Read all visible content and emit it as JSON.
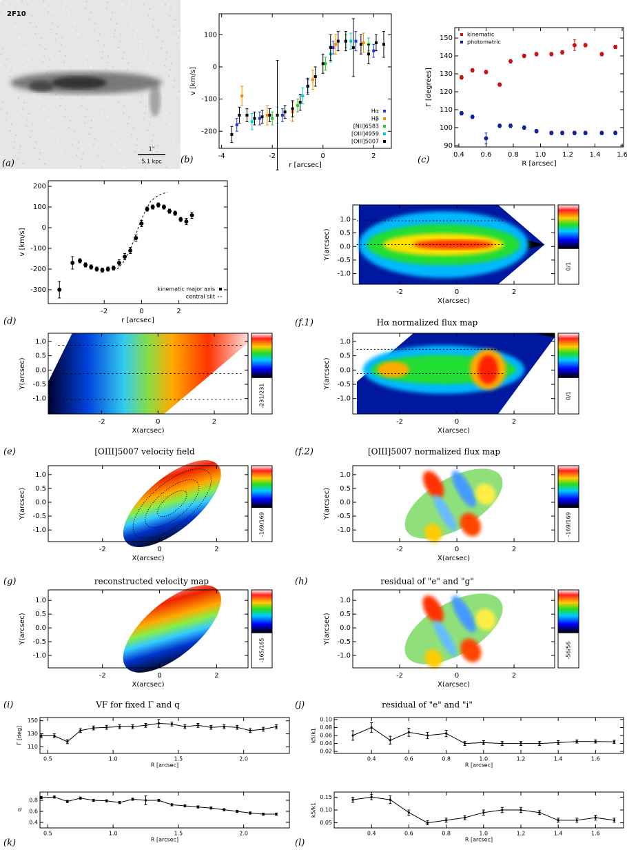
{
  "chart_data": [
    {
      "type": "image",
      "label": "2F10",
      "scale_top": "1\"",
      "scale_bottom": "5.1 kpc",
      "caption": "(a)"
    },
    {
      "type": "scatter",
      "caption": "(b)",
      "xlabel": "r [arcsec]",
      "ylabel": "v [km/s]",
      "xlim": [
        -4.1,
        2.7
      ],
      "ylim": [
        -253,
        165
      ],
      "xticks": [
        -4,
        -2,
        0,
        2
      ],
      "yticks": [
        -200,
        -100,
        0,
        100
      ],
      "legend": "lower right",
      "series": [
        {
          "name": "Hα",
          "color": "#2233dd",
          "x": [
            -3.4,
            -2.5,
            -1.6,
            -0.6,
            0.4,
            1.3,
            2.0
          ],
          "values": [
            -180,
            -160,
            -150,
            -60,
            60,
            80,
            50
          ],
          "errors": [
            20,
            20,
            20,
            20,
            20,
            30,
            20
          ]
        },
        {
          "name": "Hβ",
          "color": "#ff8800",
          "x": [
            -3.2,
            -2.2,
            -1.2,
            -0.4,
            0.5,
            1.6
          ],
          "values": [
            -90,
            -150,
            -140,
            -40,
            70,
            75
          ],
          "errors": [
            30,
            30,
            30,
            30,
            30,
            30
          ]
        },
        {
          "name": "[NII]6583",
          "color": "#22cc22",
          "x": [
            -3.0,
            -2.0,
            -1.0,
            0.1,
            0.9,
            1.8
          ],
          "values": [
            -150,
            -160,
            -120,
            10,
            80,
            70
          ],
          "errors": [
            20,
            20,
            20,
            20,
            20,
            20
          ]
        },
        {
          "name": "[OIII]4959",
          "color": "#00cccc",
          "x": [
            -2.8,
            -1.8,
            -0.8,
            0.3,
            1.1
          ],
          "values": [
            -170,
            -150,
            -90,
            40,
            80
          ],
          "errors": [
            25,
            25,
            25,
            25,
            25
          ]
        },
        {
          "name": "[OIII]5007",
          "color": "#000000",
          "x": [
            -3.6,
            -3.3,
            -3.0,
            -2.7,
            -2.4,
            -2.1,
            -1.8,
            -1.5,
            -1.2,
            -0.9,
            -0.6,
            -0.3,
            0,
            0.3,
            0.6,
            0.9,
            1.2,
            1.5,
            1.8,
            2.1,
            2.4
          ],
          "values": [
            -210,
            -150,
            -150,
            -160,
            -155,
            -150,
            -150,
            -140,
            -130,
            -110,
            -60,
            -30,
            10,
            60,
            80,
            80,
            60,
            70,
            40,
            75,
            70
          ],
          "errors": [
            25,
            25,
            20,
            20,
            20,
            20,
            170,
            20,
            25,
            25,
            25,
            30,
            30,
            40,
            30,
            30,
            90,
            30,
            30,
            25,
            40
          ]
        }
      ]
    },
    {
      "type": "scatter",
      "caption": "(c)",
      "xlabel": "R [arcsec]",
      "ylabel": "Γ [degrees]",
      "xlim": [
        0.37,
        1.61
      ],
      "ylim": [
        89.2,
        155.8
      ],
      "xticks": [
        0.4,
        0.6,
        0.8,
        {
          "value": 1,
          "label": "1.0"
        },
        1.2,
        1.4,
        1.6
      ],
      "yticks": [
        90,
        100,
        110,
        120,
        130,
        140,
        150
      ],
      "legend": "upper left",
      "series": [
        {
          "name": "kinematic",
          "color": "#cc1111",
          "x": [
            0.42,
            0.5,
            0.6,
            0.7,
            0.78,
            0.88,
            0.97,
            1.08,
            1.16,
            1.25,
            1.33,
            1.45,
            1.55
          ],
          "values": [
            128,
            132,
            131,
            124,
            137,
            140,
            141,
            141,
            142,
            146,
            146,
            141,
            145
          ],
          "errors": [
            1,
            1,
            1,
            1,
            1,
            1,
            1,
            1,
            1,
            3,
            1,
            1,
            1
          ]
        },
        {
          "name": "photometric",
          "color": "#112299",
          "x": [
            0.42,
            0.5,
            0.6,
            0.7,
            0.78,
            0.88,
            0.97,
            1.08,
            1.16,
            1.25,
            1.33,
            1.45,
            1.55
          ],
          "values": [
            108,
            106,
            94,
            101,
            101,
            100,
            98,
            97,
            97,
            97,
            97,
            97,
            97
          ],
          "errors": [
            1,
            1,
            3,
            1,
            1,
            1,
            1,
            1,
            1,
            1,
            1,
            1,
            1
          ]
        }
      ]
    },
    {
      "type": "scatter",
      "caption": "(d)",
      "xlabel": "r [arcsec]",
      "ylabel": "v [km/s]",
      "xlim": [
        -5,
        4.6
      ],
      "ylim": [
        -367,
        227
      ],
      "xticks": [
        -2,
        0,
        2
      ],
      "yticks": [
        -300,
        -200,
        -100,
        0,
        100,
        200
      ],
      "legend": "lower right",
      "series": [
        {
          "name": "kinematic major axis",
          "color": "#000000",
          "x": [
            -4.4,
            -3.7,
            -3.3,
            -3,
            -2.7,
            -2.4,
            -2.1,
            -1.8,
            -1.5,
            -1.2,
            -0.9,
            -0.6,
            -0.3,
            0,
            0.3,
            0.6,
            0.9,
            1.2,
            1.5,
            1.8,
            2.1,
            2.4,
            2.7
          ],
          "values": [
            -300,
            -170,
            -160,
            -180,
            -190,
            -200,
            -205,
            -200,
            -195,
            -170,
            -140,
            -110,
            -50,
            20,
            90,
            100,
            110,
            100,
            80,
            70,
            40,
            30,
            60
          ],
          "errors": [
            40,
            30,
            10,
            10,
            10,
            10,
            10,
            10,
            10,
            15,
            15,
            15,
            15,
            15,
            10,
            10,
            10,
            10,
            10,
            10,
            10,
            15,
            15
          ]
        },
        {
          "name": "central slit",
          "color": "#000000",
          "style": "dashed",
          "x": [
            -1.3,
            -1.0,
            -0.7,
            -0.4,
            -0.1,
            0.2,
            0.5,
            0.8,
            1.1,
            1.4
          ],
          "values": [
            -200,
            -170,
            -120,
            -60,
            20,
            80,
            130,
            150,
            165,
            170
          ]
        }
      ]
    },
    {
      "type": "map",
      "caption": "(f.1)",
      "title": "Hα normalized flux map",
      "xlabel": "X(arcsec)",
      "ylabel": "Y(arcsec)",
      "colorbar": "0/1",
      "xlim": [
        -3.64,
        3.42
      ],
      "ylim": [
        -1.39,
        1.53
      ],
      "xticks": [
        -2,
        0,
        2
      ],
      "yticks": [
        {
          "value": 1,
          "label": "1.0"
        },
        0.5,
        {
          "value": 0,
          "label": "0.0"
        },
        -0.5,
        {
          "value": -1,
          "label": "-1.0"
        }
      ]
    },
    {
      "type": "map",
      "caption": "(e)",
      "title": "[OIII]5007 velocity field",
      "xlabel": "X(arcsec)",
      "ylabel": "Y(arcsec)",
      "colorbar": "-231/231",
      "xlim": [
        -3.9,
        3.2
      ],
      "ylim": [
        -1.54,
        1.29
      ],
      "xticks": [
        -2,
        0,
        2
      ],
      "yticks": [
        {
          "value": 1,
          "label": "1.0"
        },
        0.5,
        {
          "value": 0,
          "label": "0.0"
        },
        -0.5,
        {
          "value": -1,
          "label": "-1.0"
        }
      ]
    },
    {
      "type": "map",
      "caption": "(f.2)",
      "title": "[OIII]5007  normalized flux map",
      "xlabel": "X(arcsec)",
      "ylabel": "Y(arcsec)",
      "colorbar": "0/1",
      "xlim": [
        -3.64,
        3.42
      ],
      "ylim": [
        -1.54,
        1.29
      ],
      "xticks": [
        -2,
        0,
        2
      ],
      "yticks": [
        {
          "value": 1,
          "label": "1.0"
        },
        0.5,
        {
          "value": 0,
          "label": "0.0"
        },
        -0.5,
        {
          "value": -1,
          "label": "-1.0"
        }
      ]
    },
    {
      "type": "map",
      "caption": "(g)",
      "title": "reconstructed velocity map",
      "xlabel": "X(arcsec)",
      "ylabel": "Y(arcsec)",
      "colorbar": "-169/169",
      "xlim": [
        -3.9,
        3.1
      ],
      "ylim": [
        -1.42,
        1.32
      ],
      "xticks": [
        -2,
        0,
        2
      ],
      "yticks": [
        {
          "value": 1,
          "label": "1.0"
        },
        0.5,
        {
          "value": 0,
          "label": "0.0"
        },
        -0.5,
        {
          "value": -1,
          "label": "-1.0"
        }
      ]
    },
    {
      "type": "map",
      "caption": "(h)",
      "title": "residual of \"e\" and \"g\"",
      "xlabel": "X(arcsec)",
      "ylabel": "Y(arcsec)",
      "colorbar": "-169/169",
      "xlim": [
        -3.64,
        3.42
      ],
      "ylim": [
        -1.42,
        1.32
      ],
      "xticks": [
        -2,
        0,
        2
      ],
      "yticks": [
        {
          "value": 1,
          "label": "1.0"
        },
        0.5,
        {
          "value": 0,
          "label": "0.0"
        },
        -0.5,
        {
          "value": -1,
          "label": "-1.0"
        }
      ]
    },
    {
      "type": "map",
      "caption": "(i)",
      "title": "VF for fixed Γ and q",
      "xlabel": "X(arcsec)",
      "ylabel": "Y(arcsec)",
      "colorbar": "-165/165",
      "xlim": [
        -3.9,
        3.1
      ],
      "ylim": [
        -1.45,
        1.38
      ],
      "xticks": [
        -2,
        0,
        2
      ],
      "yticks": [
        {
          "value": 1,
          "label": "1.0"
        },
        0.5,
        {
          "value": 0,
          "label": "0.0"
        },
        -0.5,
        {
          "value": -1,
          "label": "-1.0"
        }
      ]
    },
    {
      "type": "map",
      "caption": "(j)",
      "title": "residual of \"e\" and \"i\"",
      "xlabel": "X(arcsec)",
      "ylabel": "Y(arcsec)",
      "colorbar": "-56/56",
      "xlim": [
        -3.64,
        3.42
      ],
      "ylim": [
        -1.45,
        1.38
      ],
      "xticks": [
        -2,
        0,
        2
      ],
      "yticks": [
        {
          "value": 1,
          "label": "1.0"
        },
        0.5,
        {
          "value": 0,
          "label": "0.0"
        },
        -0.5,
        {
          "value": -1,
          "label": "-1.0"
        }
      ]
    },
    {
      "type": "line",
      "xlabel": "R [arcsec]",
      "ylabel": "Γ [deg]",
      "xlim": [
        0.44,
        2.35
      ],
      "ylim": [
        100,
        155
      ],
      "xticks": [
        0.5,
        {
          "value": 1,
          "label": "1.0"
        },
        1.5,
        {
          "value": 2,
          "label": "2.0"
        }
      ],
      "yticks": [
        110,
        130,
        150
      ],
      "series": [
        {
          "color": "#000000",
          "x": [
            0.45,
            0.55,
            0.65,
            0.75,
            0.85,
            0.95,
            1.05,
            1.15,
            1.25,
            1.35,
            1.45,
            1.55,
            1.65,
            1.75,
            1.85,
            1.95,
            2.05,
            2.15,
            2.25
          ],
          "values": [
            127,
            127,
            118,
            135,
            139,
            140,
            141,
            141,
            143,
            146,
            145,
            141,
            143,
            140,
            141,
            140,
            135,
            137,
            141
          ],
          "errors": [
            3,
            3,
            3,
            3,
            3,
            3,
            3,
            3,
            3,
            6,
            3,
            3,
            3,
            3,
            3,
            3,
            3,
            3,
            3
          ]
        }
      ]
    },
    {
      "type": "line",
      "xlabel": "R [arcsec]",
      "ylabel": "k5/k1",
      "xlim": [
        0.2,
        1.75
      ],
      "ylim": [
        0.015,
        0.105
      ],
      "xticks": [
        0.4,
        0.6,
        0.8,
        {
          "value": 1,
          "label": "1.0"
        },
        1.2,
        1.4,
        1.6
      ],
      "yticks": [
        0.02,
        0.04,
        0.06,
        0.08,
        {
          "value": 0.1,
          "label": "0.10"
        }
      ],
      "series": [
        {
          "color": "#000000",
          "x": [
            0.3,
            0.4,
            0.5,
            0.6,
            0.7,
            0.8,
            0.9,
            1.0,
            1.1,
            1.2,
            1.3,
            1.4,
            1.5,
            1.6,
            1.7
          ],
          "values": [
            0.06,
            0.08,
            0.048,
            0.068,
            0.06,
            0.065,
            0.04,
            0.042,
            0.04,
            0.04,
            0.04,
            0.042,
            0.045,
            0.045,
            0.044
          ],
          "errors": [
            0.012,
            0.012,
            0.01,
            0.01,
            0.008,
            0.008,
            0.005,
            0.005,
            0.005,
            0.005,
            0.005,
            0.005,
            0.004,
            0.004,
            0.004
          ]
        }
      ]
    },
    {
      "type": "line",
      "caption": "(k)",
      "xlabel": "R [arcsec]",
      "ylabel": "q",
      "xlim": [
        0.44,
        2.35
      ],
      "ylim": [
        0.3,
        0.95
      ],
      "xticks": [
        0.5,
        {
          "value": 1,
          "label": "1.0"
        },
        1.5,
        {
          "value": 2,
          "label": "2.0"
        }
      ],
      "yticks": [
        0.4,
        0.6,
        0.8
      ],
      "series": [
        {
          "color": "#000000",
          "x": [
            0.45,
            0.55,
            0.65,
            0.75,
            0.85,
            0.95,
            1.05,
            1.15,
            1.25,
            1.35,
            1.45,
            1.55,
            1.65,
            1.75,
            1.85,
            1.95,
            2.05,
            2.15,
            2.25
          ],
          "values": [
            0.85,
            0.86,
            0.78,
            0.84,
            0.8,
            0.79,
            0.76,
            0.82,
            0.8,
            0.8,
            0.72,
            0.7,
            0.68,
            0.66,
            0.63,
            0.6,
            0.57,
            0.55,
            0.55
          ],
          "errors": [
            0.02,
            0.02,
            0.02,
            0.02,
            0.02,
            0.02,
            0.02,
            0.02,
            0.08,
            0.02,
            0.02,
            0.02,
            0.02,
            0.02,
            0.02,
            0.02,
            0.02,
            0.02,
            0.02
          ]
        }
      ]
    },
    {
      "type": "line",
      "caption": "(l)",
      "xlabel": "R [arcsec]",
      "ylabel": "k5/k1",
      "xlim": [
        0.2,
        1.75
      ],
      "ylim": [
        0.03,
        0.17
      ],
      "xticks": [
        0.4,
        0.6,
        0.8,
        {
          "value": 1,
          "label": "1.0"
        },
        1.2,
        1.4,
        1.6
      ],
      "yticks": [
        0.05,
        {
          "value": 0.1,
          "label": "0.10"
        },
        0.15
      ],
      "series": [
        {
          "color": "#000000",
          "x": [
            0.3,
            0.4,
            0.5,
            0.6,
            0.7,
            0.8,
            0.9,
            1.0,
            1.1,
            1.2,
            1.3,
            1.4,
            1.5,
            1.6,
            1.7
          ],
          "values": [
            0.14,
            0.15,
            0.14,
            0.09,
            0.05,
            0.06,
            0.07,
            0.09,
            0.1,
            0.1,
            0.09,
            0.06,
            0.06,
            0.07,
            0.06
          ],
          "errors": [
            0.01,
            0.01,
            0.015,
            0.01,
            0.008,
            0.008,
            0.008,
            0.01,
            0.01,
            0.01,
            0.008,
            0.008,
            0.008,
            0.01,
            0.008
          ]
        }
      ]
    }
  ]
}
